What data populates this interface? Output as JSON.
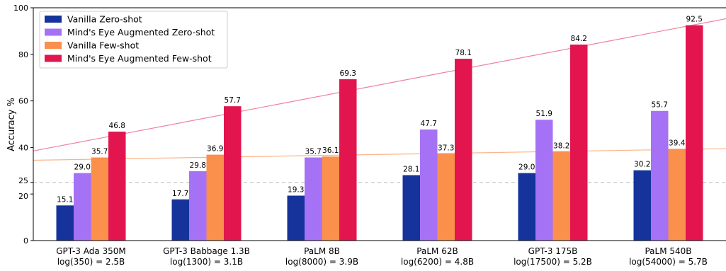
{
  "chart_data": {
    "type": "bar",
    "ylabel": "Accuracy %",
    "xlabel": "",
    "ylim": [
      0,
      100
    ],
    "yticks": [
      0,
      20,
      25,
      40,
      60,
      80,
      100
    ],
    "reference_line": {
      "y": 25,
      "style": "dashed",
      "color": "#bbbbbb"
    },
    "categories": [
      [
        "GPT-3 Ada 350M",
        "log(350) = 2.5B"
      ],
      [
        "GPT-3 Babbage 1.3B",
        "log(1300) = 3.1B"
      ],
      [
        "PaLM 8B",
        "log(8000) = 3.9B"
      ],
      [
        "PaLM 62B",
        "log(6200) = 4.8B"
      ],
      [
        "GPT-3 175B",
        "log(17500) = 5.2B"
      ],
      [
        "PaLM 540B",
        "log(54000) = 5.7B"
      ]
    ],
    "series": [
      {
        "name": "Vanilla Zero-shot",
        "color": "#15339a",
        "values": [
          15.1,
          17.7,
          19.3,
          28.1,
          29.0,
          30.2
        ]
      },
      {
        "name": "Mind's Eye Augmented Zero-shot",
        "color": "#a672f5",
        "values": [
          29.0,
          29.8,
          35.7,
          47.7,
          51.9,
          55.7
        ]
      },
      {
        "name": "Vanilla Few-shot",
        "color": "#fb8f4c",
        "values": [
          35.7,
          36.9,
          36.1,
          37.3,
          38.2,
          39.4
        ]
      },
      {
        "name": "Mind's Eye Augmented Few-shot",
        "color": "#e2154f",
        "values": [
          46.8,
          57.7,
          69.3,
          78.1,
          84.2,
          92.5
        ]
      }
    ],
    "trend_lines": [
      {
        "series": "Vanilla Few-shot",
        "color": "#fbb48a",
        "y_start": 34.5,
        "y_end": 39.5
      },
      {
        "series": "Mind's Eye Augmented Few-shot",
        "color": "#f080a0",
        "y_start": 38.5,
        "y_end": 95.3
      }
    ],
    "legend": {
      "position": "top-left"
    },
    "grid": false
  }
}
